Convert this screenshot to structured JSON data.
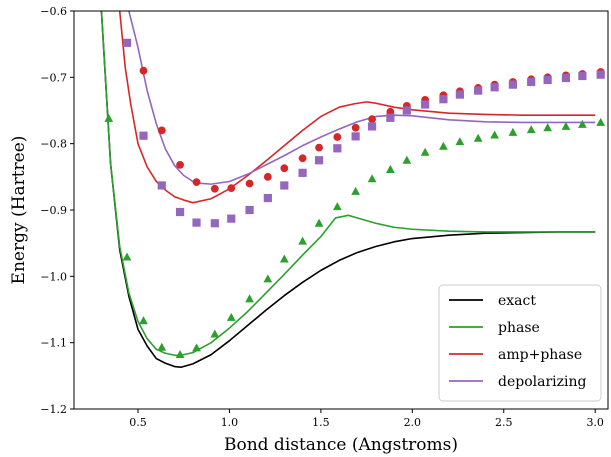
{
  "chart_data": {
    "type": "line",
    "title": "",
    "xlabel": "Bond distance (Angstroms)",
    "ylabel": "Energy (Hartree)",
    "xlim": [
      0.15,
      3.07
    ],
    "ylim": [
      -1.2,
      -0.6
    ],
    "xticks": [
      0.5,
      1.0,
      1.5,
      2.0,
      2.5,
      3.0
    ],
    "xtick_labels": [
      "0.5",
      "1.0",
      "1.5",
      "2.0",
      "2.5",
      "3.0"
    ],
    "yticks": [
      -1.2,
      -1.1,
      -1.0,
      -0.9,
      -0.8,
      -0.7,
      -0.6
    ],
    "ytick_labels": [
      "−1.2",
      "−1.1",
      "−1.0",
      "−0.9",
      "−0.8",
      "−0.7",
      "−0.6"
    ],
    "grid": false,
    "legend": "lower-right",
    "series": [
      {
        "name": "exact",
        "color": "#000000",
        "kind": "line",
        "x": [
          0.3,
          0.35,
          0.4,
          0.45,
          0.5,
          0.55,
          0.6,
          0.65,
          0.7,
          0.735,
          0.8,
          0.9,
          1.0,
          1.1,
          1.2,
          1.3,
          1.4,
          1.5,
          1.6,
          1.7,
          1.8,
          1.9,
          2.0,
          2.2,
          2.4,
          2.6,
          2.8,
          3.0
        ],
        "y": [
          -0.6,
          -0.83,
          -0.96,
          -1.03,
          -1.08,
          -1.105,
          -1.124,
          -1.131,
          -1.136,
          -1.137,
          -1.132,
          -1.118,
          -1.097,
          -1.074,
          -1.051,
          -1.029,
          -1.009,
          -0.991,
          -0.976,
          -0.964,
          -0.955,
          -0.948,
          -0.943,
          -0.938,
          -0.935,
          -0.934,
          -0.933,
          -0.933
        ]
      },
      {
        "name": "phase",
        "color": "#2ca02c",
        "kind": "line",
        "x": [
          0.3,
          0.35,
          0.4,
          0.45,
          0.5,
          0.55,
          0.6,
          0.65,
          0.7,
          0.735,
          0.8,
          0.9,
          1.0,
          1.1,
          1.2,
          1.3,
          1.4,
          1.5,
          1.58,
          1.65,
          1.7,
          1.8,
          1.9,
          2.0,
          2.2,
          2.4,
          2.6,
          2.8,
          3.0
        ],
        "y": [
          -0.6,
          -0.83,
          -0.955,
          -1.025,
          -1.068,
          -1.094,
          -1.11,
          -1.116,
          -1.119,
          -1.119,
          -1.115,
          -1.1,
          -1.078,
          -1.053,
          -1.025,
          -0.997,
          -0.968,
          -0.94,
          -0.912,
          -0.908,
          -0.912,
          -0.92,
          -0.926,
          -0.929,
          -0.932,
          -0.933,
          -0.933,
          -0.933,
          -0.933
        ]
      },
      {
        "name": "amp+phase",
        "color": "#d62728",
        "kind": "line",
        "x": [
          0.4,
          0.43,
          0.46,
          0.5,
          0.55,
          0.6,
          0.65,
          0.7,
          0.75,
          0.8,
          0.9,
          1.0,
          1.1,
          1.2,
          1.3,
          1.4,
          1.5,
          1.6,
          1.68,
          1.75,
          1.8,
          1.9,
          2.0,
          2.2,
          2.4,
          2.6,
          2.8,
          3.0
        ],
        "y": [
          -0.6,
          -0.685,
          -0.74,
          -0.8,
          -0.835,
          -0.857,
          -0.87,
          -0.88,
          -0.885,
          -0.889,
          -0.883,
          -0.868,
          -0.848,
          -0.826,
          -0.803,
          -0.78,
          -0.759,
          -0.745,
          -0.74,
          -0.737,
          -0.739,
          -0.745,
          -0.749,
          -0.754,
          -0.756,
          -0.757,
          -0.757,
          -0.757
        ]
      },
      {
        "name": "depolarizing",
        "color": "#9467bd",
        "kind": "line",
        "x": [
          0.45,
          0.5,
          0.55,
          0.6,
          0.65,
          0.7,
          0.75,
          0.8,
          0.85,
          0.9,
          1.0,
          1.1,
          1.2,
          1.3,
          1.4,
          1.5,
          1.6,
          1.7,
          1.8,
          1.9,
          2.0,
          2.2,
          2.4,
          2.6,
          2.8,
          3.0
        ],
        "y": [
          -0.6,
          -0.655,
          -0.72,
          -0.77,
          -0.808,
          -0.833,
          -0.848,
          -0.857,
          -0.86,
          -0.861,
          -0.857,
          -0.846,
          -0.832,
          -0.818,
          -0.803,
          -0.79,
          -0.778,
          -0.767,
          -0.759,
          -0.757,
          -0.758,
          -0.764,
          -0.767,
          -0.768,
          -0.768,
          -0.768
        ]
      },
      {
        "name": "",
        "color": "#2ca02c",
        "kind": "triangle",
        "x": [
          0.34,
          0.44,
          0.53,
          0.63,
          0.73,
          0.82,
          0.92,
          1.01,
          1.11,
          1.21,
          1.3,
          1.4,
          1.49,
          1.59,
          1.69,
          1.78,
          1.88,
          1.97,
          2.07,
          2.17,
          2.26,
          2.36,
          2.45,
          2.55,
          2.65,
          2.74,
          2.84,
          2.93,
          3.03
        ],
        "y": [
          -0.762,
          -0.971,
          -1.067,
          -1.107,
          -1.118,
          -1.108,
          -1.087,
          -1.062,
          -1.034,
          -1.004,
          -0.974,
          -0.947,
          -0.92,
          -0.895,
          -0.872,
          -0.853,
          -0.839,
          -0.825,
          -0.813,
          -0.804,
          -0.797,
          -0.792,
          -0.787,
          -0.783,
          -0.779,
          -0.776,
          -0.774,
          -0.771,
          -0.768
        ]
      },
      {
        "name": "",
        "color": "#d62728",
        "kind": "circle",
        "x": [
          0.53,
          0.63,
          0.73,
          0.82,
          0.92,
          1.01,
          1.11,
          1.21,
          1.3,
          1.4,
          1.49,
          1.59,
          1.69,
          1.78,
          1.88,
          1.97,
          2.07,
          2.17,
          2.26,
          2.36,
          2.45,
          2.55,
          2.65,
          2.74,
          2.84,
          2.93,
          3.03
        ],
        "y": [
          -0.69,
          -0.78,
          -0.832,
          -0.858,
          -0.868,
          -0.867,
          -0.86,
          -0.85,
          -0.837,
          -0.822,
          -0.806,
          -0.79,
          -0.776,
          -0.763,
          -0.752,
          -0.743,
          -0.734,
          -0.727,
          -0.721,
          -0.716,
          -0.711,
          -0.707,
          -0.703,
          -0.7,
          -0.697,
          -0.695,
          -0.692
        ]
      },
      {
        "name": "",
        "color": "#9467bd",
        "kind": "square",
        "x": [
          0.44,
          0.53,
          0.63,
          0.73,
          0.82,
          0.92,
          1.01,
          1.11,
          1.21,
          1.3,
          1.4,
          1.49,
          1.59,
          1.69,
          1.78,
          1.88,
          1.97,
          2.07,
          2.17,
          2.26,
          2.36,
          2.45,
          2.55,
          2.65,
          2.74,
          2.84,
          2.93,
          3.03
        ],
        "y": [
          -0.648,
          -0.788,
          -0.863,
          -0.903,
          -0.919,
          -0.92,
          -0.913,
          -0.9,
          -0.882,
          -0.863,
          -0.844,
          -0.825,
          -0.807,
          -0.789,
          -0.774,
          -0.761,
          -0.75,
          -0.741,
          -0.733,
          -0.726,
          -0.72,
          -0.715,
          -0.711,
          -0.707,
          -0.704,
          -0.701,
          -0.698,
          -0.696
        ]
      }
    ]
  }
}
